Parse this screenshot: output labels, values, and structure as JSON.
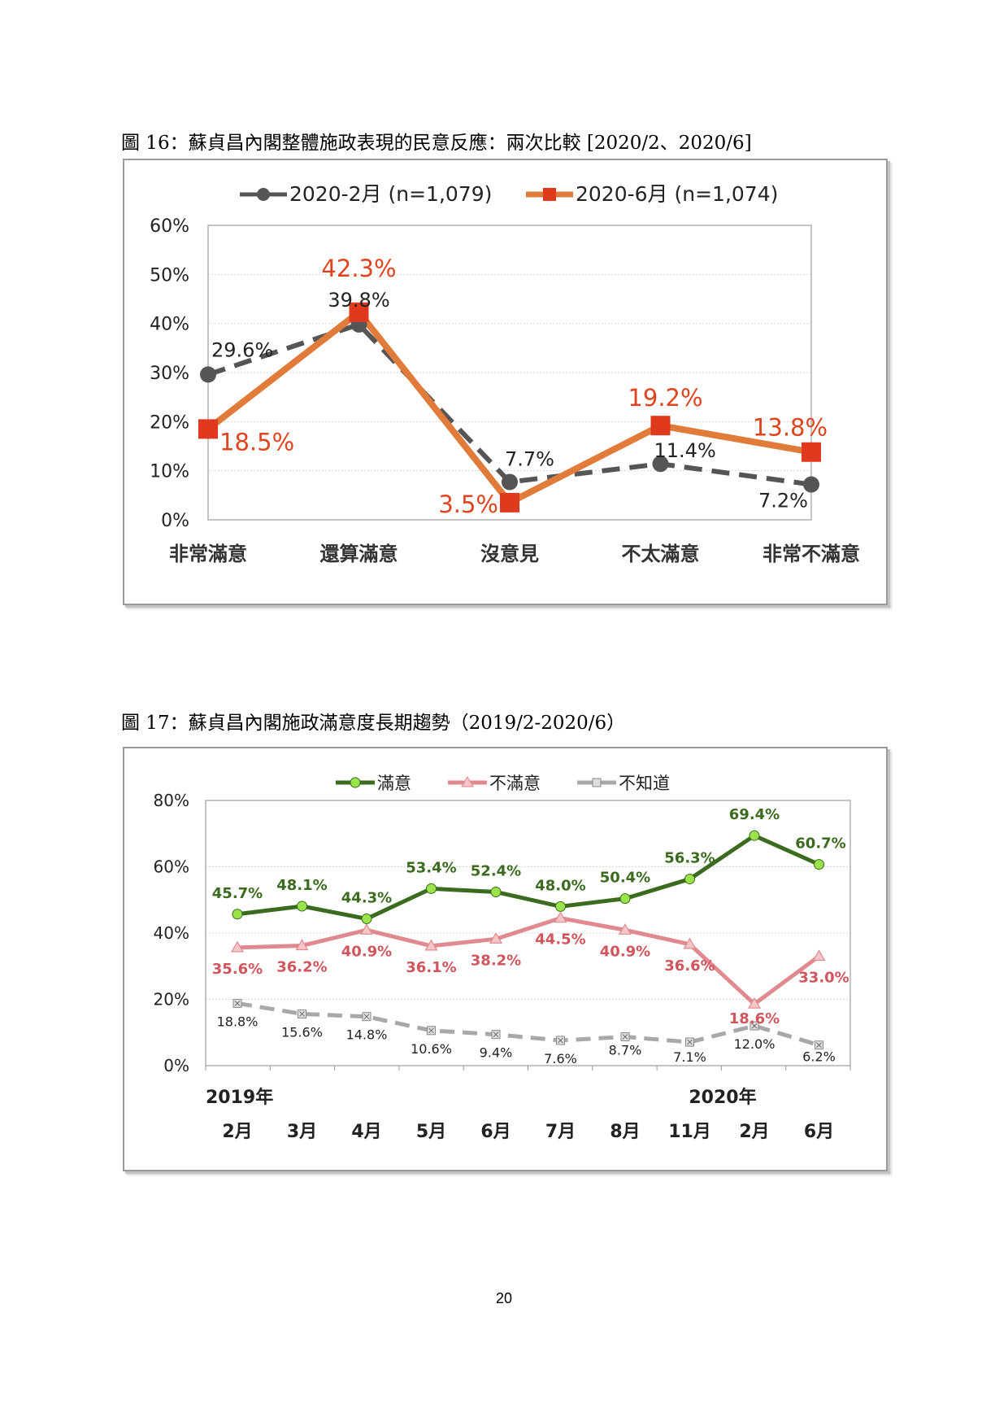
{
  "figures": [
    {
      "caption": "圖 16：蘇貞昌內閣整體施政表現的民意反應：兩次比較  [2020/2、2020/6]"
    },
    {
      "caption": "圖 17：蘇貞昌內閣施政滿意度長期趨勢（2019/2-2020/6）"
    }
  ],
  "page_number": "20",
  "chart_data": [
    {
      "type": "line",
      "categories": [
        "非常滿意",
        "還算滿意",
        "沒意見",
        "不太滿意",
        "非常不滿意"
      ],
      "ylim": [
        0,
        60
      ],
      "yticks": [
        0,
        10,
        20,
        30,
        40,
        50,
        60
      ],
      "ytick_labels": [
        "0%",
        "10%",
        "20%",
        "30%",
        "40%",
        "50%",
        "60%"
      ],
      "legend_position": "top",
      "grid": true,
      "series": [
        {
          "name": "2020-2月 (n=1,079)",
          "values": [
            29.6,
            39.8,
            7.7,
            11.4,
            7.2
          ],
          "labels": [
            "29.6%",
            "39.8%",
            "7.7%",
            "11.4%",
            "7.2%"
          ],
          "color": "#555555",
          "style": "dashed",
          "marker": "circle"
        },
        {
          "name": "2020-6月 (n=1,074)",
          "values": [
            18.5,
            42.3,
            3.5,
            19.2,
            13.8
          ],
          "labels": [
            "18.5%",
            "42.3%",
            "3.5%",
            "19.2%",
            "13.8%"
          ],
          "color": "#E07B39",
          "marker_color": "#E03A1E",
          "style": "solid",
          "marker": "square"
        }
      ]
    },
    {
      "type": "line",
      "categories": [
        "2月",
        "3月",
        "4月",
        "5月",
        "6月",
        "7月",
        "8月",
        "11月",
        "2月",
        "6月"
      ],
      "year_labels": [
        "2019年",
        "2020年"
      ],
      "ylim": [
        0,
        80
      ],
      "yticks": [
        0,
        20,
        40,
        60,
        80
      ],
      "ytick_labels": [
        "0%",
        "20%",
        "40%",
        "60%",
        "80%"
      ],
      "legend_position": "top",
      "grid": true,
      "series": [
        {
          "name": "滿意",
          "values": [
            45.7,
            48.1,
            44.3,
            53.4,
            52.4,
            48.0,
            50.4,
            56.3,
            69.4,
            60.7
          ],
          "labels": [
            "45.7%",
            "48.1%",
            "44.3%",
            "53.4%",
            "52.4%",
            "48.0%",
            "50.4%",
            "56.3%",
            "69.4%",
            "60.7%"
          ],
          "color": "#3A6B1E",
          "marker_color": "#9BE34A",
          "marker": "circle",
          "style": "solid"
        },
        {
          "name": "不滿意",
          "values": [
            35.6,
            36.2,
            40.9,
            36.1,
            38.2,
            44.5,
            40.9,
            36.6,
            18.6,
            33.0
          ],
          "labels": [
            "35.6%",
            "36.2%",
            "40.9%",
            "36.1%",
            "38.2%",
            "44.5%",
            "40.9%",
            "36.6%",
            "18.6%",
            "33.0%"
          ],
          "color": "#E08A8F",
          "label_color": "#D0555C",
          "marker": "triangle",
          "style": "solid"
        },
        {
          "name": "不知道",
          "values": [
            18.8,
            15.6,
            14.8,
            10.6,
            9.4,
            7.6,
            8.7,
            7.1,
            12.0,
            6.2
          ],
          "labels": [
            "18.8%",
            "15.6%",
            "14.8%",
            "10.6%",
            "9.4%",
            "7.6%",
            "8.7%",
            "7.1%",
            "12.0%",
            "6.2%"
          ],
          "color": "#A8A8A8",
          "marker": "x-square",
          "style": "dashed"
        }
      ]
    }
  ]
}
